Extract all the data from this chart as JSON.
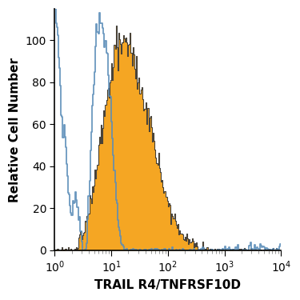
{
  "xlabel": "TRAIL R4/TNFRSF10D",
  "ylabel": "Relative Cell Number",
  "xlim_log": [
    1,
    10000
  ],
  "ylim": [
    0,
    115
  ],
  "yticks": [
    0,
    20,
    40,
    60,
    80,
    100
  ],
  "background_color": "#ffffff",
  "blue_color": "#5b8db8",
  "orange_color": "#f5a623",
  "outline_color": "#2a2a2a",
  "blue_peak_log": 0.82,
  "blue_peak_height": 108,
  "blue_left_start_height": 112,
  "orange_peak_log": 1.18,
  "orange_peak_height": 100,
  "xlabel_fontsize": 11,
  "ylabel_fontsize": 11,
  "tick_fontsize": 10
}
